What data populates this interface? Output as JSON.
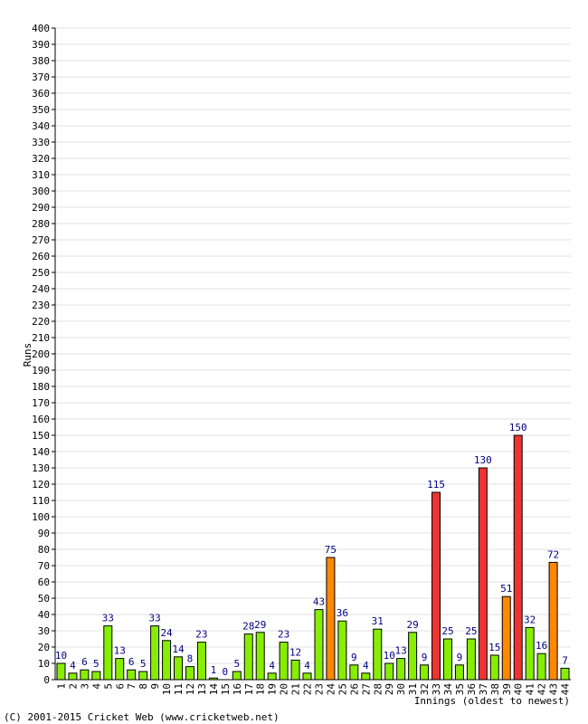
{
  "chart_data": {
    "type": "bar",
    "ylabel": "Runs",
    "xlabel": "Innings (oldest to newest)",
    "ylim": [
      0,
      400
    ],
    "y_tick_step": 10,
    "grid": true,
    "categories": [
      "1",
      "2",
      "3",
      "4",
      "5",
      "6",
      "7",
      "8",
      "9",
      "10",
      "11",
      "12",
      "13",
      "14",
      "15",
      "16",
      "17",
      "18",
      "19",
      "20",
      "21",
      "22",
      "23",
      "24",
      "25",
      "26",
      "27",
      "28",
      "29",
      "30",
      "31",
      "32",
      "33",
      "34",
      "35",
      "36",
      "37",
      "38",
      "39",
      "40",
      "41",
      "42",
      "43",
      "44"
    ],
    "values": [
      10,
      4,
      6,
      5,
      33,
      13,
      6,
      5,
      33,
      24,
      14,
      8,
      23,
      1,
      0,
      5,
      28,
      29,
      4,
      23,
      12,
      4,
      43,
      75,
      36,
      9,
      4,
      31,
      10,
      13,
      29,
      9,
      115,
      25,
      9,
      25,
      130,
      15,
      51,
      150,
      32,
      16,
      72,
      7
    ],
    "bar_colors": {
      "below_50": "#88ee00",
      "fifty": "#ff8800",
      "hundred": "#ee3333"
    },
    "label_color": "#000080",
    "copyright": "(C) 2001-2015 Cricket Web (www.cricketweb.net)"
  }
}
